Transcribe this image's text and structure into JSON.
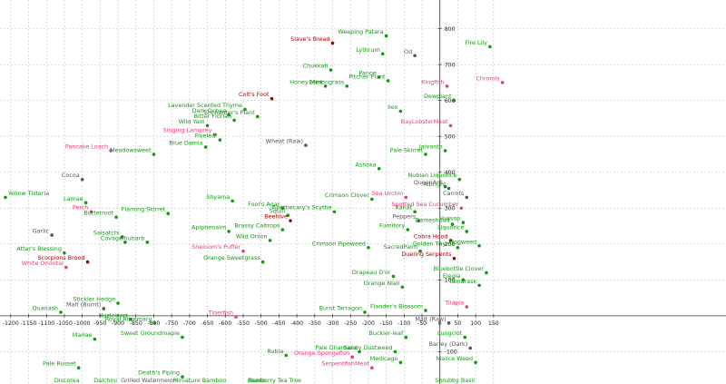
{
  "chart_data": {
    "type": "scatter",
    "title": "",
    "xlabel": "",
    "ylabel": "",
    "xlim": [
      -1230,
      800
    ],
    "ylim": [
      -190,
      880
    ],
    "grid": true,
    "x_ticks": [
      -1200,
      -1150,
      -1100,
      -1050,
      -1000,
      -950,
      -900,
      -850,
      -800,
      -750,
      -700,
      -650,
      -600,
      -550,
      -500,
      -450,
      -400,
      -350,
      -300,
      -250,
      -200,
      -150,
      -100,
      -50,
      0,
      50,
      100,
      150
    ],
    "y_ticks": [
      -100,
      100,
      200,
      300,
      400,
      500,
      600,
      700,
      800
    ],
    "colors": {
      "green": "#119911",
      "dark_red": "#aa0000",
      "pink": "#e0407a",
      "gray": "#555555"
    },
    "points": [
      {
        "x": -1215,
        "y": 330,
        "label": "Yellow Tisteria",
        "color": "green"
      },
      {
        "x": -1060,
        "y": 10,
        "label": "Quanash",
        "color": "green"
      },
      {
        "x": -1085,
        "y": 225,
        "label": "Garlic",
        "color": "gray"
      },
      {
        "x": -1050,
        "y": 175,
        "label": "Attar's Blessing",
        "color": "green"
      },
      {
        "x": -1045,
        "y": 135,
        "label": "White Oriontal",
        "color": "pink"
      },
      {
        "x": -1000,
        "y": 380,
        "label": "Cocoa",
        "color": "gray"
      },
      {
        "x": -990,
        "y": 315,
        "label": "Lamae",
        "color": "green"
      },
      {
        "x": -975,
        "y": 290,
        "label": "Perch",
        "color": "pink"
      },
      {
        "x": -985,
        "y": 150,
        "label": "Scorpions Brood",
        "color": "dark_red"
      },
      {
        "x": -965,
        "y": -65,
        "label": "Mariae",
        "color": "green"
      },
      {
        "x": -1010,
        "y": -145,
        "label": "Pale Russet",
        "color": "green"
      },
      {
        "x": -1000,
        "y": -230,
        "label": "Discorea",
        "color": "green"
      },
      {
        "x": -920,
        "y": 460,
        "label": "Pancake Loach",
        "color": "pink"
      },
      {
        "x": -940,
        "y": 20,
        "label": "Malt (Burnt)",
        "color": "gray"
      },
      {
        "x": -900,
        "y": 35,
        "label": "Stickler Hedge",
        "color": "green"
      },
      {
        "x": -905,
        "y": 275,
        "label": "Butterroot",
        "color": "green"
      },
      {
        "x": -888,
        "y": 220,
        "label": "Salsatchi",
        "color": "green"
      },
      {
        "x": -880,
        "y": 205,
        "label": "Covage",
        "color": "green"
      },
      {
        "x": -865,
        "y": -10,
        "label": "Hazlewort",
        "color": "green"
      },
      {
        "x": -895,
        "y": -220,
        "label": "Dalchini",
        "color": "green"
      },
      {
        "x": -800,
        "y": 450,
        "label": "Meadowsweet",
        "color": "green"
      },
      {
        "x": -818,
        "y": 205,
        "label": "Rhubarb",
        "color": "green"
      },
      {
        "x": -760,
        "y": 285,
        "label": "Flaming Skirret",
        "color": "green"
      },
      {
        "x": -798,
        "y": -20,
        "label": "Royal Rosemary",
        "color": "green"
      },
      {
        "x": -720,
        "y": -60,
        "label": "Sweet Groundmaple",
        "color": "green"
      },
      {
        "x": -720,
        "y": -170,
        "label": "Death's Piping",
        "color": "green"
      },
      {
        "x": -728,
        "y": -205,
        "label": "Grilled Watermelon",
        "color": "gray"
      },
      {
        "x": -650,
        "y": 530,
        "label": "Wild Yam",
        "color": "green"
      },
      {
        "x": -630,
        "y": 505,
        "label": "Singing Lamprey",
        "color": "pink"
      },
      {
        "x": -615,
        "y": 490,
        "label": "Fiveleaf",
        "color": "green"
      },
      {
        "x": -655,
        "y": 470,
        "label": "Blue Damia",
        "color": "green"
      },
      {
        "x": -590,
        "y": 560,
        "label": "Dark Ochea",
        "color": "green"
      },
      {
        "x": -575,
        "y": 545,
        "label": "Bitter Florian",
        "color": "green"
      },
      {
        "x": -545,
        "y": 575,
        "label": "Lavender Scented Thyme",
        "color": "green"
      },
      {
        "x": -510,
        "y": 555,
        "label": "Enchanter's Plant",
        "color": "green"
      },
      {
        "x": -470,
        "y": 605,
        "label": "Colt's Foot",
        "color": "dark_red"
      },
      {
        "x": -580,
        "y": 320,
        "label": "Shyama",
        "color": "green"
      },
      {
        "x": -590,
        "y": 235,
        "label": "Apiphenalm",
        "color": "green"
      },
      {
        "x": -550,
        "y": 180,
        "label": "Sheloom's Puffer",
        "color": "pink"
      },
      {
        "x": -570,
        "y": -3,
        "label": "Tigerfish",
        "color": "pink"
      },
      {
        "x": -590,
        "y": -195,
        "label": "Miniature Bamboo",
        "color": "green"
      },
      {
        "x": -475,
        "y": 210,
        "label": "Wild Onion",
        "color": "green"
      },
      {
        "x": -495,
        "y": 150,
        "label": "Orange Sweetgrass",
        "color": "green"
      },
      {
        "x": -480,
        "y": -225,
        "label": "Banto",
        "color": "green"
      },
      {
        "x": -440,
        "y": 300,
        "label": "Fool's Agar",
        "color": "green"
      },
      {
        "x": -425,
        "y": 280,
        "label": "Squill",
        "color": "green"
      },
      {
        "x": -418,
        "y": 265,
        "label": "Beehive",
        "color": "dark_red"
      },
      {
        "x": -440,
        "y": 240,
        "label": "Brassy Caltrops",
        "color": "green"
      },
      {
        "x": -430,
        "y": -110,
        "label": "Rubia",
        "color": "green"
      },
      {
        "x": -375,
        "y": 475,
        "label": "Wheat (Raw)",
        "color": "gray"
      },
      {
        "x": -300,
        "y": 760,
        "label": "Slave's Bread",
        "color": "dark_red"
      },
      {
        "x": -305,
        "y": 685,
        "label": "Chukkah",
        "color": "green"
      },
      {
        "x": -320,
        "y": 640,
        "label": "Honey Mint",
        "color": "green"
      },
      {
        "x": -295,
        "y": 290,
        "label": "Apothecary's Scythe",
        "color": "green"
      },
      {
        "x": -380,
        "y": -210,
        "label": "Blueberry Tea Tree",
        "color": "green"
      },
      {
        "x": -260,
        "y": 640,
        "label": "Lemongrass",
        "color": "green"
      },
      {
        "x": -210,
        "y": 10,
        "label": "Burnt Tarragon",
        "color": "green"
      },
      {
        "x": -225,
        "y": -100,
        "label": "Pale Dhamasa",
        "color": "green"
      },
      {
        "x": -245,
        "y": -115,
        "label": "Orange Spongefish",
        "color": "pink"
      },
      {
        "x": -190,
        "y": -145,
        "label": "SerpentfishMeat",
        "color": "pink"
      },
      {
        "x": -150,
        "y": 780,
        "label": "Weeping Patara",
        "color": "green"
      },
      {
        "x": -160,
        "y": 730,
        "label": "Lythrum",
        "color": "green"
      },
      {
        "x": -170,
        "y": 665,
        "label": "Panoe",
        "color": "green"
      },
      {
        "x": -145,
        "y": 655,
        "label": "Pitcher Plant",
        "color": "green"
      },
      {
        "x": -110,
        "y": 570,
        "label": "Ilex",
        "color": "green"
      },
      {
        "x": -170,
        "y": 410,
        "label": "Ashoka",
        "color": "green"
      },
      {
        "x": -190,
        "y": 325,
        "label": "Crimson Clover",
        "color": "green"
      },
      {
        "x": -200,
        "y": 190,
        "label": "Crimson Pipeweed",
        "color": "green"
      },
      {
        "x": -130,
        "y": 110,
        "label": "Drapeau D'or",
        "color": "green"
      },
      {
        "x": -105,
        "y": 80,
        "label": "Orange Niali",
        "color": "green"
      },
      {
        "x": -125,
        "y": -100,
        "label": "Sandy Dustweed",
        "color": "green"
      },
      {
        "x": -95,
        "y": -60,
        "label": "Buckler-leaf",
        "color": "green"
      },
      {
        "x": -110,
        "y": -130,
        "label": "Medicago",
        "color": "green"
      },
      {
        "x": -95,
        "y": 330,
        "label": "Sea Urchin",
        "color": "pink"
      },
      {
        "x": -70,
        "y": 725,
        "label": "Od",
        "color": "gray"
      },
      {
        "x": -90,
        "y": 240,
        "label": "Fumitory",
        "color": "green"
      },
      {
        "x": -70,
        "y": 290,
        "label": "Xanat",
        "color": "green"
      },
      {
        "x": -60,
        "y": 265,
        "label": "Peppers",
        "color": "gray"
      },
      {
        "x": -55,
        "y": 180,
        "label": "SacredPalm",
        "color": "green"
      },
      {
        "x": -40,
        "y": 15,
        "label": "Flander's Blossom",
        "color": "green"
      },
      {
        "x": -40,
        "y": 450,
        "label": "Pale Skirret",
        "color": "green"
      },
      {
        "x": 20,
        "y": 640,
        "label": "Kingfish",
        "color": "pink"
      },
      {
        "x": 40,
        "y": 600,
        "label": "Dewplant",
        "color": "green"
      },
      {
        "x": 30,
        "y": 530,
        "label": "BayLobsterMeat",
        "color": "pink"
      },
      {
        "x": 15,
        "y": 460,
        "label": "Jaivanto",
        "color": "green"
      },
      {
        "x": 15,
        "y": 360,
        "label": "QueenAnt",
        "color": "gray"
      },
      {
        "x": 55,
        "y": 380,
        "label": "Nubian Liquorice",
        "color": "green"
      },
      {
        "x": 25,
        "y": 355,
        "label": "Albright",
        "color": "green"
      },
      {
        "x": 75,
        "y": 330,
        "label": "Carrots",
        "color": "gray"
      },
      {
        "x": 60,
        "y": 300,
        "label": "Spotted Sea Cucumber",
        "color": "pink"
      },
      {
        "x": 35,
        "y": 255,
        "label": "Dameshood",
        "color": "green"
      },
      {
        "x": 65,
        "y": 260,
        "label": "Hyssop",
        "color": "green"
      },
      {
        "x": 75,
        "y": 235,
        "label": "Liquorice",
        "color": "green"
      },
      {
        "x": 30,
        "y": 210,
        "label": "Cobra Hood",
        "color": "dark_red"
      },
      {
        "x": 50,
        "y": 190,
        "label": "Golden Thyme",
        "color": "green"
      },
      {
        "x": 110,
        "y": 195,
        "label": "Hogweed",
        "color": "green"
      },
      {
        "x": 40,
        "y": 160,
        "label": "Dueling Serpents",
        "color": "dark_red"
      },
      {
        "x": 130,
        "y": 120,
        "label": "Bluebottle Clover",
        "color": "green"
      },
      {
        "x": 65,
        "y": 100,
        "label": "Elegia",
        "color": "green"
      },
      {
        "x": 110,
        "y": 85,
        "label": "Tamarask",
        "color": "green"
      },
      {
        "x": 75,
        "y": 25,
        "label": "Tilapia",
        "color": "pink"
      },
      {
        "x": 25,
        "y": -20,
        "label": "Malt (Raw)",
        "color": "gray"
      },
      {
        "x": 70,
        "y": -60,
        "label": "Lungclot",
        "color": "green"
      },
      {
        "x": 85,
        "y": -90,
        "label": "Barley (Dark)",
        "color": "gray"
      },
      {
        "x": 100,
        "y": -130,
        "label": "Malice Weed",
        "color": "green"
      },
      {
        "x": 105,
        "y": -200,
        "label": "Shrubby Basil",
        "color": "green"
      },
      {
        "x": 140,
        "y": 750,
        "label": "Fire Lily",
        "color": "green"
      },
      {
        "x": 175,
        "y": 650,
        "label": "Chromis",
        "color": "pink"
      }
    ]
  }
}
